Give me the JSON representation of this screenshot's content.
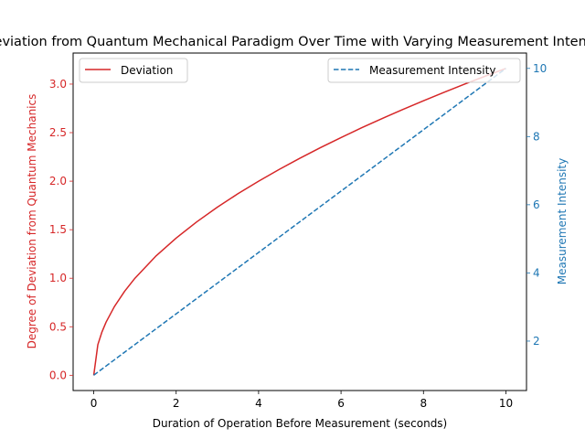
{
  "chart_data": {
    "type": "line",
    "title": "Deviation from Quantum Mechanical Paradigm Over Time with Varying Measurement Intensity",
    "xlabel": "Duration of Operation Before Measurement (seconds)",
    "ylabel_left": "Degree of Deviation from Quantum Mechanics",
    "ylabel_right": "Measurement Intensity",
    "xlim": [
      -0.5,
      10.5
    ],
    "ylim_left": [
      -0.157,
      3.32
    ],
    "ylim_right": [
      0.55,
      10.45
    ],
    "x_ticks": [
      0,
      2,
      4,
      6,
      8,
      10
    ],
    "x_tick_labels": [
      "0",
      "2",
      "4",
      "6",
      "8",
      "10"
    ],
    "y_left_ticks": [
      0.0,
      0.5,
      1.0,
      1.5,
      2.0,
      2.5,
      3.0
    ],
    "y_left_tick_labels": [
      "0.0",
      "0.5",
      "1.0",
      "1.5",
      "2.0",
      "2.5",
      "3.0"
    ],
    "y_right_ticks": [
      2,
      4,
      6,
      8,
      10
    ],
    "y_right_tick_labels": [
      "2",
      "4",
      "6",
      "8",
      "10"
    ],
    "grid": false,
    "series": [
      {
        "name": "Deviation",
        "axis": "left",
        "color": "#d62728",
        "style": "solid",
        "x": [
          0,
          0.1,
          0.2,
          0.3,
          0.5,
          0.75,
          1,
          1.5,
          2,
          2.5,
          3,
          3.5,
          4,
          4.5,
          5,
          5.5,
          6,
          6.5,
          7,
          7.5,
          8,
          8.5,
          9,
          9.5,
          10
        ],
        "values": [
          0,
          0.316,
          0.447,
          0.548,
          0.707,
          0.866,
          1.0,
          1.225,
          1.414,
          1.581,
          1.732,
          1.871,
          2.0,
          2.121,
          2.236,
          2.345,
          2.449,
          2.55,
          2.646,
          2.739,
          2.828,
          2.915,
          3.0,
          3.082,
          3.162
        ]
      },
      {
        "name": "Measurement Intensity",
        "axis": "right",
        "color": "#1f77b4",
        "style": "dashed",
        "x": [
          0,
          10
        ],
        "values": [
          1,
          10
        ]
      }
    ],
    "legends": [
      {
        "placement": "upper-left",
        "entries": [
          "Deviation"
        ]
      },
      {
        "placement": "upper-right",
        "entries": [
          "Measurement Intensity"
        ]
      }
    ]
  }
}
